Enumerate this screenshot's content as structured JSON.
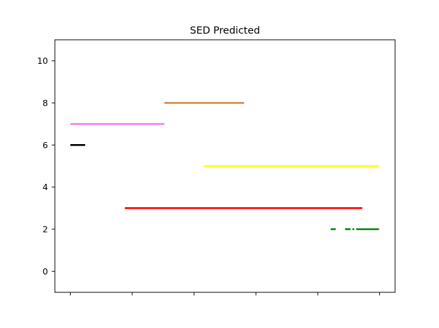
{
  "chart_data": {
    "type": "line",
    "title": "SED Predicted",
    "xlabel": "",
    "ylabel": "",
    "xlim": [
      -0.25,
      5.25
    ],
    "ylim": [
      -1,
      11
    ],
    "xticks": [
      0,
      1,
      2,
      3,
      4,
      5
    ],
    "xtick_labels": [
      "",
      "",
      "",
      "",
      "",
      ""
    ],
    "yticks": [
      0,
      2,
      4,
      6,
      8,
      10
    ],
    "ytick_labels": [
      "0",
      "2",
      "4",
      "6",
      "8",
      "10"
    ],
    "grid": false,
    "series": [
      {
        "color": "#000000",
        "y": 6,
        "segments": [
          [
            0.0,
            0.24
          ]
        ]
      },
      {
        "color": "#ee82ee",
        "y": 7,
        "segments": [
          [
            0.0,
            1.52
          ]
        ]
      },
      {
        "color": "#cd853f",
        "y": 8,
        "segments": [
          [
            1.52,
            2.81
          ]
        ]
      },
      {
        "color": "#ffff00",
        "y": 5,
        "segments": [
          [
            2.16,
            4.99
          ]
        ]
      },
      {
        "color": "#ff0000",
        "y": 3,
        "segments": [
          [
            0.88,
            4.72
          ]
        ]
      },
      {
        "color": "#008000",
        "y": 2,
        "segments": [
          [
            4.21,
            4.29
          ],
          [
            4.44,
            4.53
          ],
          [
            4.56,
            4.59
          ],
          [
            4.62,
            4.99
          ]
        ]
      }
    ]
  }
}
